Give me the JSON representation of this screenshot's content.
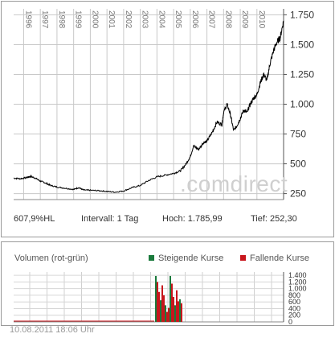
{
  "chart_data": [
    {
      "type": "line",
      "ylim": [
        200,
        1800
      ],
      "yticks": [
        250,
        500,
        750,
        1000,
        1250,
        1500,
        1750
      ],
      "ytick_labels": [
        "250",
        "500",
        "750",
        "1.000",
        "1.250",
        "1.500",
        "1.750"
      ],
      "year_labels": [
        "1996",
        "1997",
        "1998",
        "1999",
        "2000",
        "2001",
        "2002",
        "2003",
        "2004",
        "2005",
        "2006",
        "2007",
        "2008",
        "2009",
        "2010"
      ],
      "x_range": [
        1995.4,
        2011.6
      ],
      "watermark": ".comdirect",
      "series": [
        {
          "x": [
            1995.4,
            1995.8,
            1996.2,
            1996.4,
            1996.7,
            1997.0,
            1997.3,
            1997.6,
            1998.0,
            1998.5,
            1999.0,
            1999.3,
            1999.6,
            2000.0,
            2000.5,
            2001.0,
            2001.5,
            2002.0,
            2002.5,
            2003.0,
            2003.5,
            2004.0,
            2004.5,
            2005.0,
            2005.4,
            2005.7,
            2006.0,
            2006.2,
            2006.5,
            2006.8,
            2007.0,
            2007.3,
            2007.6,
            2007.9,
            2008.0,
            2008.2,
            2008.4,
            2008.6,
            2008.8,
            2009.0,
            2009.2,
            2009.4,
            2009.6,
            2009.8,
            2010.0,
            2010.2,
            2010.4,
            2010.6,
            2010.8,
            2011.0,
            2011.2,
            2011.4,
            2011.6
          ],
          "y": [
            380,
            375,
            385,
            395,
            380,
            355,
            340,
            320,
            305,
            295,
            285,
            300,
            280,
            278,
            275,
            268,
            262,
            272,
            300,
            318,
            360,
            390,
            405,
            420,
            440,
            490,
            560,
            650,
            620,
            680,
            690,
            760,
            850,
            830,
            930,
            1000,
            920,
            780,
            820,
            880,
            950,
            930,
            1000,
            1050,
            1080,
            1180,
            1250,
            1200,
            1350,
            1450,
            1520,
            1560,
            1700
          ]
        }
      ]
    },
    {
      "type": "bar",
      "ylim": [
        0,
        1500
      ],
      "yticks": [
        0,
        200,
        400,
        600,
        800,
        1000,
        1200,
        1400
      ],
      "ytick_labels": [
        "0",
        "200",
        "400",
        "600",
        "800",
        "1.000",
        "1.200",
        "1.400"
      ],
      "title": "Volumen (rot-grün)",
      "series": [
        {
          "name": "Steigende Kurse",
          "color": "#1a7a3c"
        },
        {
          "name": "Fallende Kurse",
          "color": "#c8161d"
        }
      ],
      "values": [
        1380,
        1200,
        900,
        650,
        1100,
        800,
        500,
        300,
        420,
        1380,
        1150,
        750,
        500,
        950,
        620,
        680,
        560
      ]
    }
  ],
  "stats": {
    "performance": "607,9%HL",
    "interval": "Intervall: 1 Tag",
    "high": "Hoch:  1.785,99",
    "low": "Tief:   252,30"
  },
  "timestamp": "10.08.2011 18:06 Uhr"
}
